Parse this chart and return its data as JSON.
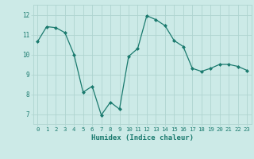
{
  "x": [
    0,
    1,
    2,
    3,
    4,
    5,
    6,
    7,
    8,
    9,
    10,
    11,
    12,
    13,
    14,
    15,
    16,
    17,
    18,
    19,
    20,
    21,
    22,
    23
  ],
  "y": [
    10.65,
    11.4,
    11.35,
    11.1,
    10.0,
    8.1,
    8.4,
    6.95,
    7.6,
    7.25,
    9.9,
    10.3,
    11.95,
    11.75,
    11.45,
    10.7,
    10.4,
    9.3,
    9.15,
    9.3,
    9.5,
    9.5,
    9.4,
    9.2
  ],
  "xlabel": "Humidex (Indice chaleur)",
  "ylim": [
    6.5,
    12.5
  ],
  "xlim": [
    -0.5,
    23.5
  ],
  "yticks": [
    7,
    8,
    9,
    10,
    11,
    12
  ],
  "xticks": [
    0,
    1,
    2,
    3,
    4,
    5,
    6,
    7,
    8,
    9,
    10,
    11,
    12,
    13,
    14,
    15,
    16,
    17,
    18,
    19,
    20,
    21,
    22,
    23
  ],
  "line_color": "#1a7a6e",
  "marker_color": "#1a7a6e",
  "bg_color": "#cceae7",
  "grid_color": "#afd4d0",
  "tick_label_color": "#1a7a6e",
  "xlabel_color": "#1a7a6e"
}
